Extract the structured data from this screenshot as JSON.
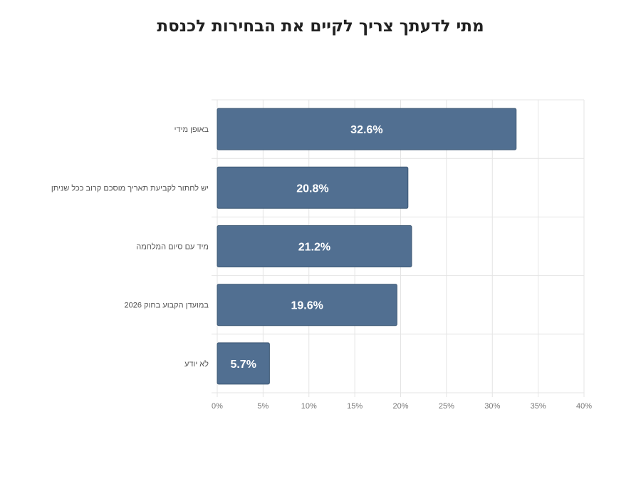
{
  "chart_data": {
    "type": "bar",
    "orientation": "horizontal",
    "title": "מתי לדעתך צריך לקיים את הבחירות לכנסת",
    "categories": [
      "באופן מידי",
      "יש לחתור לקביעת תאריך מוסכם קרוב ככל שניתן",
      "מיד עם סיום המלחמה",
      "במועדן הקבוע בחוק 2026",
      "לא יודע"
    ],
    "values": [
      32.6,
      20.8,
      21.2,
      19.6,
      5.7
    ],
    "value_labels": [
      "32.6%",
      "20.8%",
      "21.2%",
      "19.6%",
      "5.7%"
    ],
    "xlim": [
      0,
      40
    ],
    "x_ticks": [
      0,
      5,
      10,
      15,
      20,
      25,
      30,
      35,
      40
    ],
    "x_tick_labels": [
      "0%",
      "5%",
      "10%",
      "15%",
      "20%",
      "25%",
      "30%",
      "35%",
      "40%"
    ],
    "xlabel": "",
    "ylabel": "",
    "grid": true,
    "legend": "none",
    "colors": {
      "bar": "#516f91",
      "bar_edge": "#3d5874",
      "value_label": "#ffffff",
      "grid": "#e4e4e4",
      "category_label": "#555555",
      "tick_label": "#777777",
      "title": "#222222"
    }
  }
}
